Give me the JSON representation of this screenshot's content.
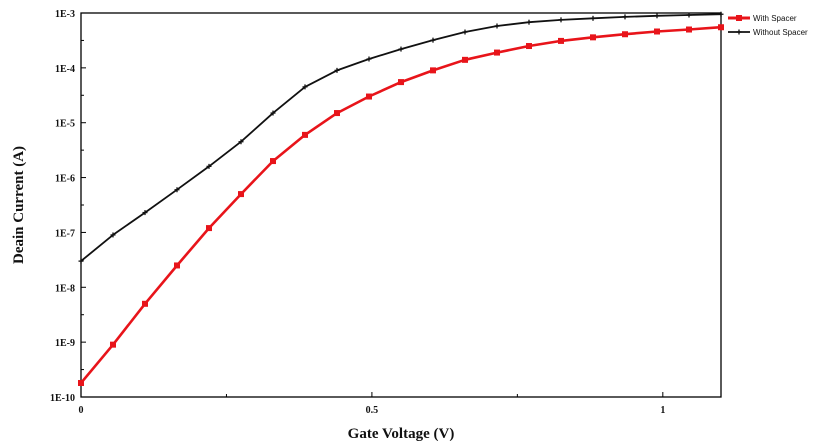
{
  "chart_data": {
    "type": "line",
    "title": "",
    "xlabel": "Gate Voltage (V)",
    "ylabel": "Deain Current (A)",
    "xlim": [
      0,
      1.1
    ],
    "ylim": [
      1e-10,
      0.001
    ],
    "yscale": "log",
    "grid": false,
    "legend_position": "top-right outside",
    "x_ticks": [
      {
        "value": 0,
        "label": "0"
      },
      {
        "value": 0.5,
        "label": "0.5"
      },
      {
        "value": 1,
        "label": "1"
      }
    ],
    "y_ticks": [
      {
        "value": 1e-10,
        "label": "1E-10"
      },
      {
        "value": 1e-09,
        "label": "1E-9"
      },
      {
        "value": 1e-08,
        "label": "1E-8"
      },
      {
        "value": 1e-07,
        "label": "1E-7"
      },
      {
        "value": 1e-06,
        "label": "1E-6"
      },
      {
        "value": 1e-05,
        "label": "1E-5"
      },
      {
        "value": 0.0001,
        "label": "1E-4"
      },
      {
        "value": 0.001,
        "label": "1E-3"
      }
    ],
    "series": [
      {
        "name": "With Spacer",
        "color": "#e8141a",
        "marker": "square",
        "x": [
          0,
          0.055,
          0.11,
          0.165,
          0.22,
          0.275,
          0.33,
          0.385,
          0.44,
          0.495,
          0.55,
          0.605,
          0.66,
          0.715,
          0.77,
          0.825,
          0.88,
          0.935,
          0.99,
          1.045,
          1.1
        ],
        "y": [
          1.8e-10,
          9e-10,
          5e-09,
          2.5e-08,
          1.2e-07,
          5e-07,
          2e-06,
          6e-06,
          1.5e-05,
          3e-05,
          5.5e-05,
          9e-05,
          0.00014,
          0.00019,
          0.00025,
          0.00031,
          0.00036,
          0.00041,
          0.00046,
          0.0005,
          0.00055
        ]
      },
      {
        "name": "Without Spacer",
        "color": "#111111",
        "marker": "plus",
        "x": [
          0,
          0.055,
          0.11,
          0.165,
          0.22,
          0.275,
          0.33,
          0.385,
          0.44,
          0.495,
          0.55,
          0.605,
          0.66,
          0.715,
          0.77,
          0.825,
          0.88,
          0.935,
          0.99,
          1.045,
          1.1
        ],
        "y": [
          3e-08,
          9e-08,
          2.3e-07,
          6e-07,
          1.6e-06,
          4.5e-06,
          1.5e-05,
          4.5e-05,
          9e-05,
          0.000145,
          0.00022,
          0.00032,
          0.00045,
          0.00058,
          0.00068,
          0.00075,
          0.0008,
          0.00085,
          0.00089,
          0.00092,
          0.00095
        ]
      }
    ]
  }
}
